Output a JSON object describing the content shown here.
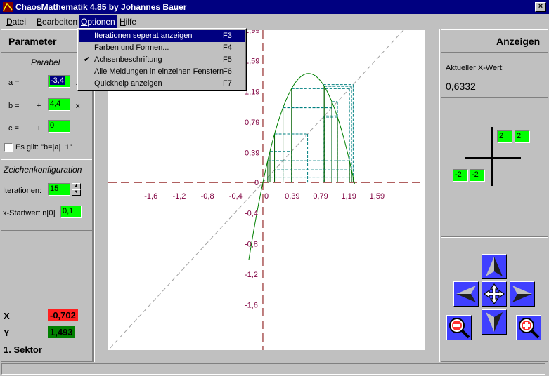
{
  "window": {
    "title": "ChaosMathematik 4.85 by Johannes Bauer",
    "close_glyph": "×"
  },
  "menubar": [
    {
      "label": "Datei",
      "mnemonic": "D"
    },
    {
      "label": "Bearbeiten",
      "mnemonic": "B"
    },
    {
      "label": "Optionen",
      "mnemonic": "O"
    },
    {
      "label": "Hilfe",
      "mnemonic": "H"
    }
  ],
  "options_menu": [
    {
      "label": "Iterationen seperat anzeigen",
      "shortcut": "F3",
      "checked": false,
      "highlighted": true
    },
    {
      "label": "Farben und Formen...",
      "shortcut": "F4",
      "checked": false,
      "highlighted": false
    },
    {
      "label": "Achsenbeschriftung",
      "shortcut": "F5",
      "checked": true,
      "highlighted": false
    },
    {
      "label": "Alle Meldungen in einzelnen Fenstern",
      "shortcut": "F6",
      "checked": false,
      "highlighted": false
    },
    {
      "label": "Quickhelp anzeigen",
      "shortcut": "F7",
      "checked": false,
      "highlighted": false
    }
  ],
  "check_glyph": "✔",
  "left_panel": {
    "header": "Parameter",
    "parabel_title": "Parabel",
    "a_label": "a =",
    "a_value": "-3,4",
    "a_suffix": "x²",
    "b_label": "b =",
    "b_plus": "+",
    "b_value": "4,4",
    "b_suffix": "x",
    "c_label": "c =",
    "c_plus": "+",
    "c_value": "0",
    "es_gilt_label": "Es gilt: \"b=|a|+1\"",
    "es_gilt_checked": false,
    "zeichen_title": "Zeichenkonfiguration",
    "iterationen_label": "Iterationen:",
    "iterationen_value": "15",
    "startwert_label": "x-Startwert n[0]",
    "startwert_value": "0,1",
    "x_label": "X",
    "x_value": "-0,702",
    "y_label": "Y",
    "y_value": "1,493",
    "sektor": "1. Sektor"
  },
  "right_panel": {
    "header": "Anzeigen",
    "aktueller_label": "Aktueller X-Wert:",
    "aktueller_value": "0,6332",
    "axis_top_left": "2",
    "axis_top_right": "2",
    "axis_bottom_left": "-2",
    "axis_bottom_right": "-2"
  },
  "nav_buttons": [
    "pan-up",
    "pan-left",
    "pan-center",
    "pan-right",
    "pan-down",
    "zoom-out",
    "zoom-in"
  ],
  "chart_data": {
    "type": "line",
    "function": {
      "a": -3.4,
      "b": 4.4,
      "c": 0
    },
    "iterations": 15,
    "x0": 0.1,
    "xlim": [
      -2.19,
      2.3
    ],
    "ylim": [
      -2.19,
      1.99
    ],
    "x_ticks": [
      "-1,6",
      "-1,2",
      "-0,8",
      "-0,4",
      "0",
      "0,39",
      "0,79",
      "1,19",
      "1,59"
    ],
    "x_tick_values": [
      -1.6,
      -1.2,
      -0.8,
      -0.4,
      0,
      0.39,
      0.79,
      1.19,
      1.59
    ],
    "y_ticks": [
      "1,99",
      "1,59",
      "1,19",
      "0,79",
      "0,39",
      "0",
      "-0,4",
      "-0,8",
      "-1,2",
      "-1,6"
    ],
    "y_tick_values": [
      1.99,
      1.59,
      1.19,
      0.79,
      0.39,
      0,
      -0.4,
      -0.8,
      -1.2,
      -1.6
    ],
    "colors": {
      "curve": "#008000",
      "axes": "#800000",
      "diagonal": "#a0a0a0",
      "cobweb_v": "#006000",
      "cobweb_h": "#008080"
    }
  }
}
